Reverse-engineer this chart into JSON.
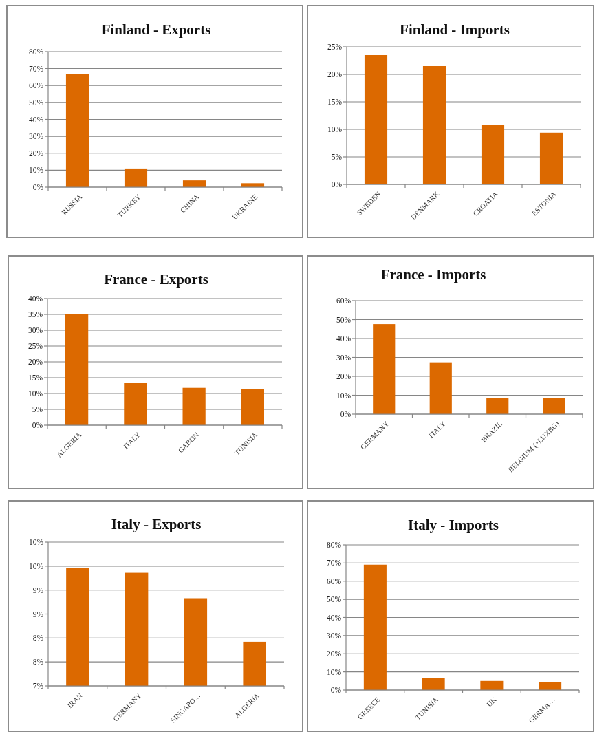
{
  "chart_data": [
    {
      "type": "bar",
      "title": "Finland - Exports",
      "categories": [
        "RUSSIA",
        "TURKEY",
        "CHINA",
        "UKRAINE"
      ],
      "values": [
        67,
        11,
        4,
        2.3
      ],
      "color": "#dc6900",
      "ylim": [
        0,
        80
      ],
      "yticks": [
        {
          "value": 0,
          "label": "0%"
        },
        {
          "value": 10,
          "label": "10%"
        },
        {
          "value": 20,
          "label": "20%"
        },
        {
          "value": 30,
          "label": "30%"
        },
        {
          "value": 40,
          "label": "40%"
        },
        {
          "value": 50,
          "label": "50%"
        },
        {
          "value": 60,
          "label": "60%"
        },
        {
          "value": 70,
          "label": "70%"
        },
        {
          "value": 80,
          "label": "80%"
        }
      ],
      "grid": "y"
    },
    {
      "type": "bar",
      "title": "Finland - Imports",
      "categories": [
        "SWEDEN",
        "DENMARK",
        "CROATIA",
        "ESTONIA"
      ],
      "values": [
        23.5,
        21.5,
        10.8,
        9.4
      ],
      "color": "#dc6900",
      "ylim": [
        0,
        25
      ],
      "yticks": [
        {
          "value": 0,
          "label": "0%"
        },
        {
          "value": 5,
          "label": "5%"
        },
        {
          "value": 10,
          "label": "10%"
        },
        {
          "value": 15,
          "label": "15%"
        },
        {
          "value": 20,
          "label": "20%"
        },
        {
          "value": 25,
          "label": "25%"
        }
      ],
      "grid": "y"
    },
    {
      "type": "bar",
      "title": "France - Exports",
      "categories": [
        "ALGERIA",
        "ITALY",
        "GABON",
        "TUNISIA"
      ],
      "values": [
        35.1,
        13.4,
        11.8,
        11.4
      ],
      "color": "#dc6900",
      "ylim": [
        0,
        40
      ],
      "yticks": [
        {
          "value": 0,
          "label": "0%"
        },
        {
          "value": 5,
          "label": "5%"
        },
        {
          "value": 10,
          "label": "10%"
        },
        {
          "value": 15,
          "label": "15%"
        },
        {
          "value": 20,
          "label": "20%"
        },
        {
          "value": 25,
          "label": "25%"
        },
        {
          "value": 30,
          "label": "30%"
        },
        {
          "value": 35,
          "label": "35%"
        },
        {
          "value": 40,
          "label": "40%"
        }
      ],
      "grid": "y"
    },
    {
      "type": "bar",
      "title": "France - Imports",
      "categories": [
        "GERMANY",
        "ITALY",
        "BRAZIL",
        "BELGIUM (+LUXBG)"
      ],
      "values": [
        47.6,
        27.4,
        8.5,
        8.5
      ],
      "color": "#dc6900",
      "ylim": [
        0,
        60
      ],
      "yticks": [
        {
          "value": 0,
          "label": "0%"
        },
        {
          "value": 10,
          "label": "10%"
        },
        {
          "value": 20,
          "label": "20%"
        },
        {
          "value": 30,
          "label": "30%"
        },
        {
          "value": 40,
          "label": "40%"
        },
        {
          "value": 50,
          "label": "50%"
        },
        {
          "value": 60,
          "label": "60%"
        }
      ],
      "grid": "y"
    },
    {
      "type": "bar",
      "title": "Italy - Exports",
      "categories": [
        "IRAN",
        "GERMANY",
        "SINGAPO…",
        "ALGERIA"
      ],
      "values": [
        9.46,
        9.36,
        8.83,
        7.92
      ],
      "color": "#dc6900",
      "ylim": [
        7,
        10
      ],
      "yticks": [
        {
          "value": 7,
          "label": "7%"
        },
        {
          "value": 7.5,
          "label": "8%"
        },
        {
          "value": 8,
          "label": "8%"
        },
        {
          "value": 8.5,
          "label": "9%"
        },
        {
          "value": 9,
          "label": "9%"
        },
        {
          "value": 9.5,
          "label": "10%"
        },
        {
          "value": 10,
          "label": "10%"
        }
      ],
      "grid": "y"
    },
    {
      "type": "bar",
      "title": "Italy - Imports",
      "categories": [
        "GREECE",
        "TUNISIA",
        "UK",
        "GERMA…"
      ],
      "values": [
        69.1,
        6.5,
        5,
        4.5
      ],
      "color": "#dc6900",
      "ylim": [
        0,
        80
      ],
      "yticks": [
        {
          "value": 0,
          "label": "0%"
        },
        {
          "value": 10,
          "label": "10%"
        },
        {
          "value": 20,
          "label": "20%"
        },
        {
          "value": 30,
          "label": "30%"
        },
        {
          "value": 40,
          "label": "40%"
        },
        {
          "value": 50,
          "label": "50%"
        },
        {
          "value": 60,
          "label": "60%"
        },
        {
          "value": 70,
          "label": "70%"
        },
        {
          "value": 80,
          "label": "80%"
        }
      ],
      "grid": "y"
    }
  ]
}
